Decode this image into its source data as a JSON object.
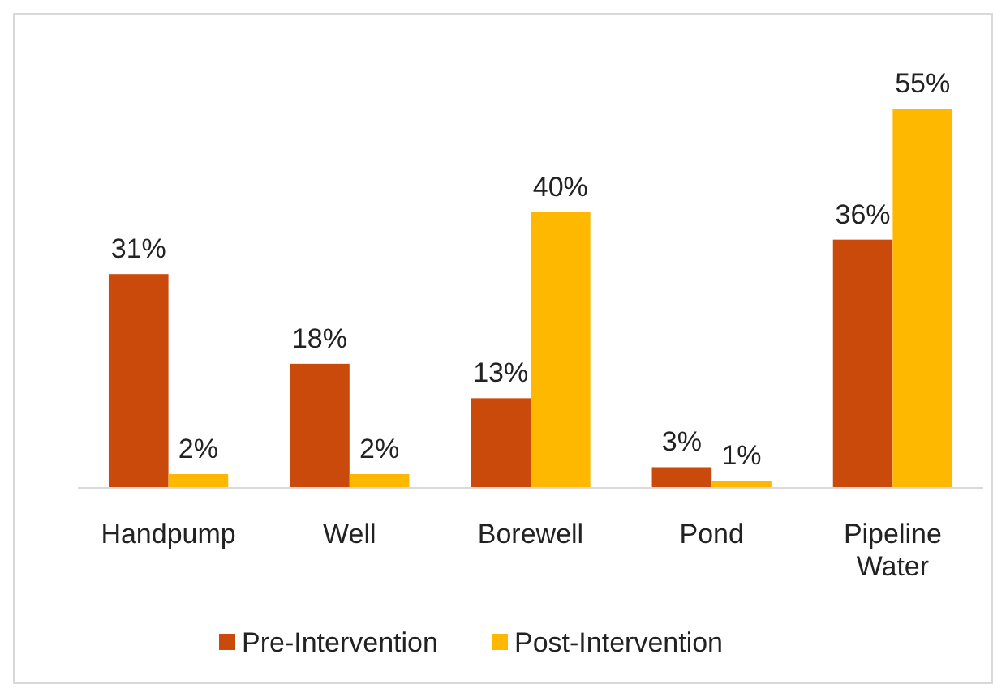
{
  "chart_data": {
    "type": "bar",
    "categories": [
      "Handpump",
      "Well",
      "Borewell",
      "Pond",
      "Pipeline Water"
    ],
    "series": [
      {
        "name": "Pre-Intervention",
        "color": "#c94a0a",
        "values": [
          31,
          18,
          13,
          3,
          36
        ],
        "value_labels": [
          "31%",
          "18%",
          "13%",
          "3%",
          "36%"
        ]
      },
      {
        "name": "Post-Intervention",
        "color": "#ffb800",
        "values": [
          2,
          2,
          40,
          1,
          55
        ],
        "value_labels": [
          "2%",
          "2%",
          "40%",
          "1%",
          "55%"
        ]
      }
    ],
    "legend": "bottom"
  }
}
